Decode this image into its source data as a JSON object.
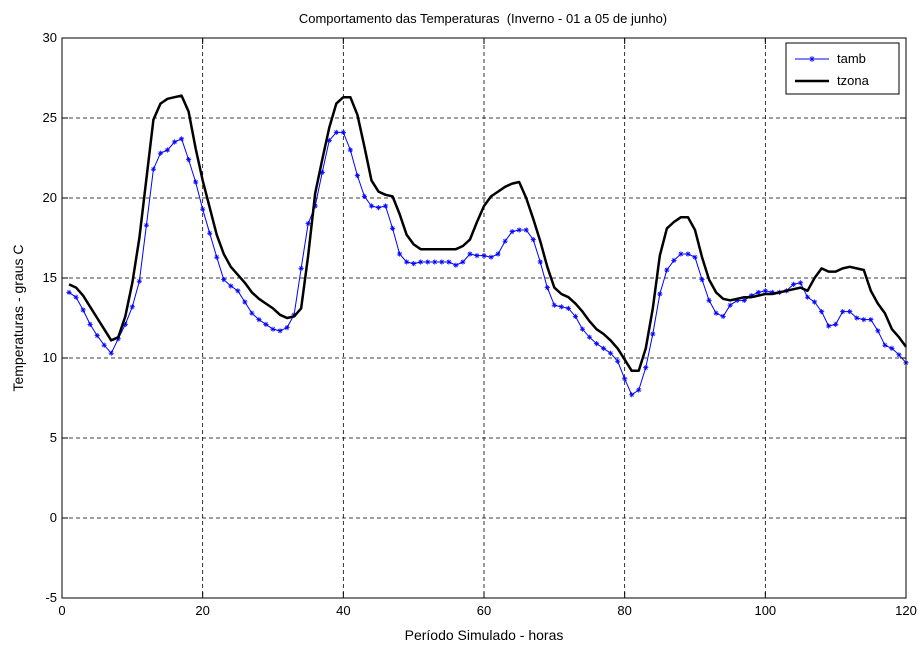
{
  "chart_data": {
    "type": "line",
    "title": "Comportamento das Temperaturas  (Inverno - 01 a 05 de junho)",
    "xlabel": "Período Simulado - horas",
    "ylabel": "Temperaturas - graus C",
    "xlim": [
      0,
      120
    ],
    "ylim": [
      -5,
      30
    ],
    "xticks": [
      0,
      20,
      40,
      60,
      80,
      100,
      120
    ],
    "yticks": [
      -5,
      0,
      5,
      10,
      15,
      20,
      25,
      30
    ],
    "grid": true,
    "legend_position": "top-right",
    "x": [
      1,
      2,
      3,
      4,
      5,
      6,
      7,
      8,
      9,
      10,
      11,
      12,
      13,
      14,
      15,
      16,
      17,
      18,
      19,
      20,
      21,
      22,
      23,
      24,
      25,
      26,
      27,
      28,
      29,
      30,
      31,
      32,
      33,
      34,
      35,
      36,
      37,
      38,
      39,
      40,
      41,
      42,
      43,
      44,
      45,
      46,
      47,
      48,
      49,
      50,
      51,
      52,
      53,
      54,
      55,
      56,
      57,
      58,
      59,
      60,
      61,
      62,
      63,
      64,
      65,
      66,
      67,
      68,
      69,
      70,
      71,
      72,
      73,
      74,
      75,
      76,
      77,
      78,
      79,
      80,
      81,
      82,
      83,
      84,
      85,
      86,
      87,
      88,
      89,
      90,
      91,
      92,
      93,
      94,
      95,
      96,
      97,
      98,
      99,
      100,
      101,
      102,
      103,
      104,
      105,
      106,
      107,
      108,
      109,
      110,
      111,
      112,
      113,
      114,
      115,
      116,
      117,
      118,
      119,
      120
    ],
    "series": [
      {
        "name": "tamb",
        "color": "#0000ff",
        "marker": "star",
        "values": [
          14.1,
          13.8,
          13.0,
          12.1,
          11.4,
          10.8,
          10.3,
          11.2,
          12.1,
          13.2,
          14.8,
          18.3,
          21.8,
          22.8,
          23.0,
          23.5,
          23.7,
          22.4,
          21.0,
          19.3,
          17.8,
          16.3,
          14.9,
          14.5,
          14.2,
          13.5,
          12.8,
          12.4,
          12.1,
          11.8,
          11.7,
          11.9,
          12.7,
          15.6,
          18.4,
          19.5,
          21.6,
          23.6,
          24.1,
          24.1,
          23.0,
          21.4,
          20.1,
          19.5,
          19.4,
          19.5,
          18.1,
          16.5,
          16.0,
          15.9,
          16.0,
          16.0,
          16.0,
          16.0,
          16.0,
          15.8,
          16.0,
          16.5,
          16.4,
          16.4,
          16.3,
          16.5,
          17.3,
          17.9,
          18.0,
          18.0,
          17.4,
          16.0,
          14.4,
          13.3,
          13.2,
          13.1,
          12.6,
          11.8,
          11.3,
          10.9,
          10.6,
          10.3,
          9.8,
          8.7,
          7.7,
          8.0,
          9.4,
          11.5,
          14.0,
          15.5,
          16.1,
          16.5,
          16.5,
          16.3,
          14.9,
          13.6,
          12.8,
          12.6,
          13.3,
          13.6,
          13.6,
          13.9,
          14.1,
          14.2,
          14.1,
          14.1,
          14.2,
          14.6,
          14.7,
          13.8,
          13.5,
          12.9,
          12.0,
          12.1,
          12.9,
          12.9,
          12.5,
          12.4,
          12.4,
          11.7,
          10.8,
          10.6,
          10.2,
          9.7
        ]
      },
      {
        "name": "tzona",
        "color": "#000000",
        "marker": "none",
        "values": [
          14.6,
          14.4,
          13.9,
          13.2,
          12.5,
          11.8,
          11.1,
          11.3,
          12.6,
          14.7,
          17.5,
          21.2,
          24.9,
          25.9,
          26.2,
          26.3,
          26.4,
          25.4,
          23.1,
          21.1,
          19.4,
          17.7,
          16.5,
          15.7,
          15.2,
          14.7,
          14.1,
          13.7,
          13.4,
          13.1,
          12.7,
          12.5,
          12.6,
          13.1,
          16.4,
          20.3,
          22.4,
          24.4,
          25.9,
          26.3,
          26.3,
          25.2,
          23.2,
          21.1,
          20.4,
          20.2,
          20.1,
          19.0,
          17.7,
          17.1,
          16.8,
          16.8,
          16.8,
          16.8,
          16.8,
          16.8,
          17.0,
          17.4,
          18.5,
          19.5,
          20.1,
          20.4,
          20.7,
          20.9,
          21.0,
          20.0,
          18.7,
          17.3,
          15.7,
          14.4,
          14.0,
          13.8,
          13.4,
          12.9,
          12.3,
          11.8,
          11.5,
          11.1,
          10.6,
          9.9,
          9.2,
          9.2,
          10.6,
          13.1,
          16.4,
          18.1,
          18.5,
          18.8,
          18.8,
          18.0,
          16.3,
          14.9,
          14.1,
          13.7,
          13.6,
          13.7,
          13.8,
          13.8,
          13.9,
          14.0,
          14.0,
          14.1,
          14.2,
          14.3,
          14.4,
          14.2,
          15.0,
          15.6,
          15.4,
          15.4,
          15.6,
          15.7,
          15.6,
          15.5,
          14.2,
          13.4,
          12.8,
          11.8,
          11.3,
          10.7
        ]
      }
    ]
  }
}
